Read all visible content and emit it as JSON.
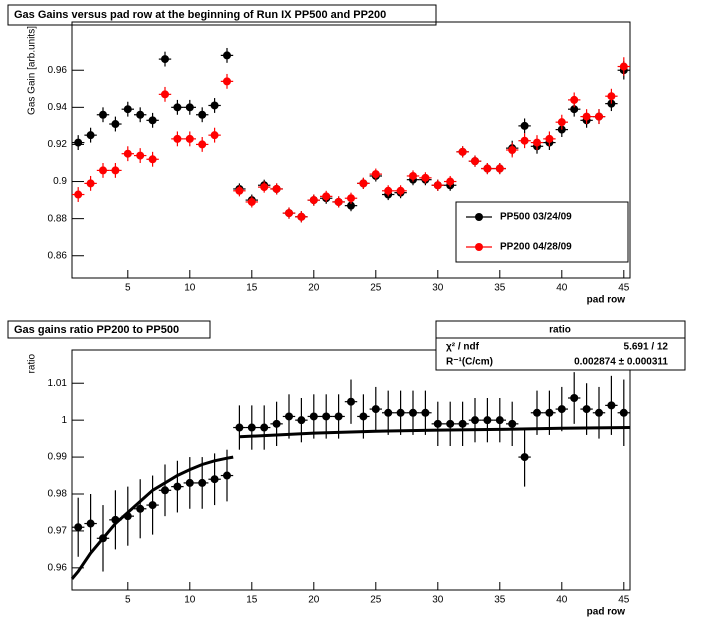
{
  "chart_data": [
    {
      "type": "errorbar",
      "title": "Gas Gains versus pad row at the beginning of Run IX PP500 and PP200",
      "x_label": "pad row",
      "y_label": "Gas Gain [arb.units]",
      "xlim": [
        0.5,
        45.5
      ],
      "xticks": [
        5,
        10,
        15,
        20,
        25,
        30,
        35,
        40,
        45
      ],
      "ylim": [
        0.848,
        0.986
      ],
      "yticks": [
        0.86,
        0.88,
        0.9,
        0.92,
        0.94,
        0.96
      ],
      "legend": "lower right",
      "x": [
        1,
        2,
        3,
        4,
        5,
        6,
        7,
        8,
        9,
        10,
        11,
        12,
        13,
        14,
        15,
        16,
        17,
        18,
        19,
        20,
        21,
        22,
        23,
        24,
        25,
        26,
        27,
        28,
        29,
        30,
        31,
        32,
        33,
        34,
        35,
        36,
        37,
        38,
        39,
        40,
        41,
        42,
        43,
        44,
        45
      ],
      "series": [
        {
          "name": "PP500 03/24/09",
          "color": "#000000",
          "values": [
            0.921,
            0.925,
            0.936,
            0.931,
            0.939,
            0.936,
            0.933,
            0.966,
            0.94,
            0.94,
            0.936,
            0.941,
            0.968,
            0.896,
            0.89,
            0.898,
            0.896,
            0.883,
            0.881,
            0.89,
            0.891,
            0.889,
            0.887,
            0.899,
            0.903,
            0.893,
            0.894,
            0.901,
            0.901,
            0.898,
            0.898,
            0.916,
            0.911,
            0.907,
            0.907,
            0.918,
            0.93,
            0.919,
            0.921,
            0.928,
            0.939,
            0.933,
            0.935,
            0.942,
            0.96
          ],
          "errors": [
            0.004,
            0.004,
            0.004,
            0.004,
            0.004,
            0.004,
            0.004,
            0.004,
            0.004,
            0.004,
            0.004,
            0.004,
            0.004,
            0.003,
            0.003,
            0.003,
            0.003,
            0.003,
            0.003,
            0.003,
            0.003,
            0.003,
            0.003,
            0.003,
            0.003,
            0.003,
            0.003,
            0.003,
            0.003,
            0.003,
            0.003,
            0.003,
            0.003,
            0.003,
            0.003,
            0.004,
            0.004,
            0.004,
            0.004,
            0.004,
            0.004,
            0.004,
            0.004,
            0.004,
            0.005
          ]
        },
        {
          "name": "PP200 04/28/09",
          "color": "#ff0000",
          "values": [
            0.893,
            0.899,
            0.906,
            0.906,
            0.915,
            0.914,
            0.912,
            0.947,
            0.923,
            0.923,
            0.92,
            0.925,
            0.954,
            0.895,
            0.889,
            0.897,
            0.896,
            0.883,
            0.881,
            0.89,
            0.892,
            0.889,
            0.891,
            0.899,
            0.904,
            0.895,
            0.895,
            0.903,
            0.902,
            0.898,
            0.9,
            0.916,
            0.911,
            0.907,
            0.907,
            0.917,
            0.922,
            0.921,
            0.923,
            0.932,
            0.944,
            0.935,
            0.935,
            0.946,
            0.962
          ],
          "errors": [
            0.004,
            0.004,
            0.004,
            0.004,
            0.004,
            0.004,
            0.004,
            0.004,
            0.004,
            0.004,
            0.004,
            0.004,
            0.004,
            0.003,
            0.003,
            0.003,
            0.003,
            0.003,
            0.003,
            0.003,
            0.003,
            0.003,
            0.003,
            0.003,
            0.003,
            0.003,
            0.003,
            0.003,
            0.003,
            0.003,
            0.003,
            0.003,
            0.003,
            0.003,
            0.003,
            0.004,
            0.004,
            0.004,
            0.004,
            0.004,
            0.004,
            0.004,
            0.004,
            0.004,
            0.005
          ]
        }
      ]
    },
    {
      "type": "errorbar",
      "title": "Gas gains ratio PP200 to PP500",
      "x_label": "pad row",
      "y_label": "ratio",
      "xlim": [
        0.5,
        45.5
      ],
      "xticks": [
        5,
        10,
        15,
        20,
        25,
        30,
        35,
        40,
        45
      ],
      "ylim": [
        0.954,
        1.019
      ],
      "yticks": [
        0.96,
        0.97,
        0.98,
        0.99,
        1,
        1.01
      ],
      "x": [
        1,
        2,
        3,
        4,
        5,
        6,
        7,
        8,
        9,
        10,
        11,
        12,
        13,
        14,
        15,
        16,
        17,
        18,
        19,
        20,
        21,
        22,
        23,
        24,
        25,
        26,
        27,
        28,
        29,
        30,
        31,
        32,
        33,
        34,
        35,
        36,
        37,
        38,
        39,
        40,
        41,
        42,
        43,
        44,
        45
      ],
      "series": [
        {
          "color": "#000000",
          "values": [
            0.971,
            0.972,
            0.968,
            0.973,
            0.974,
            0.976,
            0.977,
            0.981,
            0.982,
            0.983,
            0.983,
            0.984,
            0.985,
            0.998,
            0.998,
            0.998,
            0.999,
            1.001,
            1.0,
            1.001,
            1.001,
            1.001,
            1.005,
            1.001,
            1.003,
            1.002,
            1.002,
            1.002,
            1.002,
            0.999,
            0.999,
            0.999,
            1.0,
            1.0,
            1.0,
            0.999,
            0.99,
            1.002,
            1.002,
            1.003,
            1.006,
            1.003,
            1.002,
            1.004,
            1.002
          ],
          "errors": [
            0.008,
            0.008,
            0.009,
            0.008,
            0.008,
            0.008,
            0.008,
            0.007,
            0.007,
            0.007,
            0.007,
            0.007,
            0.007,
            0.006,
            0.006,
            0.006,
            0.006,
            0.006,
            0.006,
            0.006,
            0.006,
            0.006,
            0.006,
            0.006,
            0.006,
            0.006,
            0.006,
            0.006,
            0.006,
            0.006,
            0.006,
            0.006,
            0.006,
            0.006,
            0.006,
            0.006,
            0.008,
            0.006,
            0.006,
            0.006,
            0.007,
            0.007,
            0.007,
            0.008,
            0.009
          ]
        }
      ],
      "fit": {
        "x": [
          0.5,
          1,
          2,
          3,
          4,
          5,
          6,
          7,
          8,
          9,
          10,
          11,
          12,
          13,
          13.5,
          13.75,
          14,
          20,
          25,
          30,
          35,
          40,
          45.5
        ],
        "values": [
          0.957,
          0.959,
          0.964,
          0.968,
          0.972,
          0.975,
          0.978,
          0.981,
          0.983,
          0.985,
          0.9866,
          0.988,
          0.989,
          0.9897,
          0.99,
          null,
          0.9955,
          0.9965,
          0.997,
          0.9973,
          0.9975,
          0.9978,
          0.998
        ]
      },
      "stats": {
        "title": "ratio",
        "rows": [
          [
            "χ² / ndf",
            "5.691 / 12"
          ],
          [
            "R⁻¹(C/cm)",
            "0.002874 ± 0.000311"
          ]
        ]
      }
    }
  ]
}
